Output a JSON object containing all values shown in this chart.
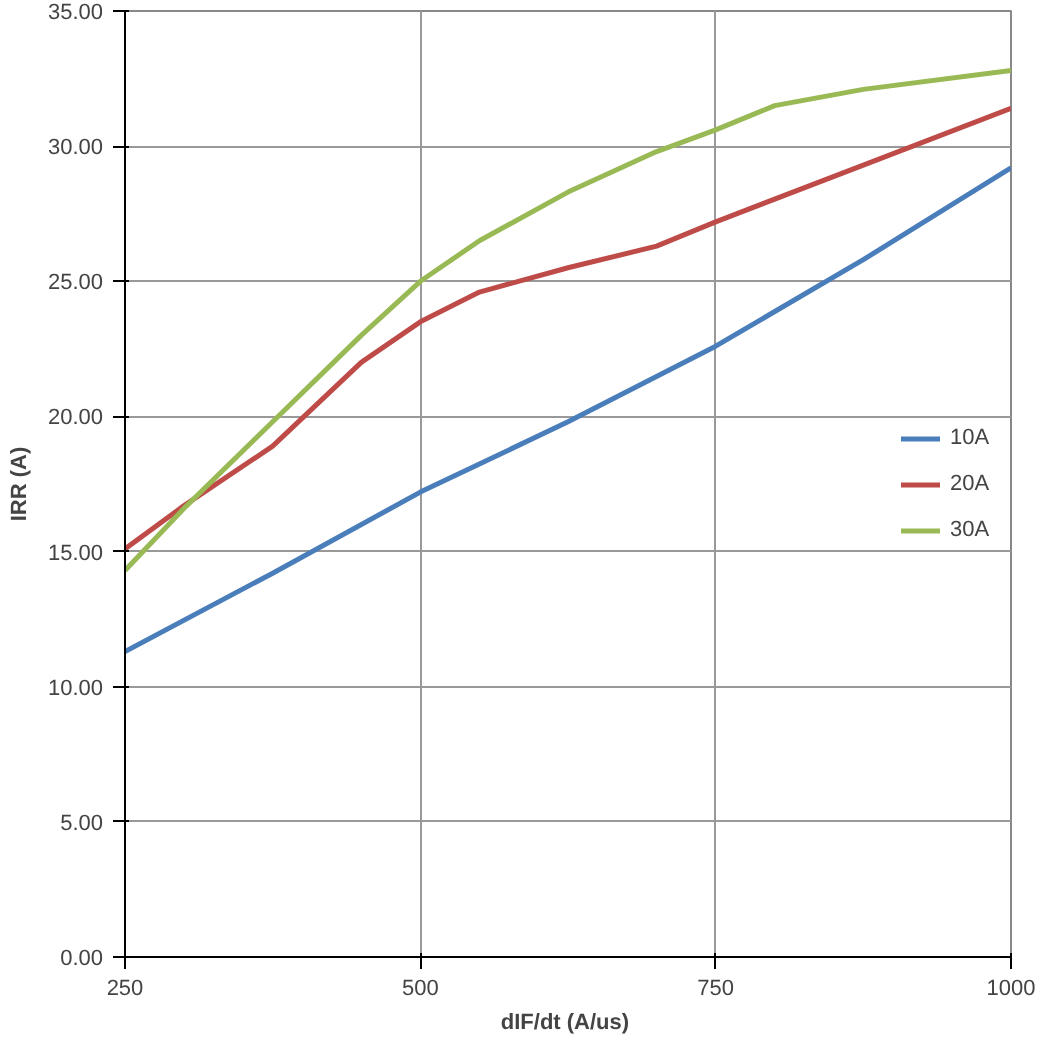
{
  "chart_data": {
    "type": "line",
    "xlabel": "dIF/dt  (A/us)",
    "ylabel": "IRR (A)",
    "xlim": [
      250,
      1000
    ],
    "xticks": [
      250,
      500,
      750,
      1000
    ],
    "ylim": [
      0,
      35
    ],
    "yticks": [
      {
        "value": 0,
        "label": "0.00"
      },
      {
        "value": 5,
        "label": "5.00"
      },
      {
        "value": 10,
        "label": "10.00"
      },
      {
        "value": 15,
        "label": "15.00"
      },
      {
        "value": 20,
        "label": "20.00"
      },
      {
        "value": 25,
        "label": "25.00"
      },
      {
        "value": 30,
        "label": "30.00"
      },
      {
        "value": 35,
        "label": "35.00"
      }
    ],
    "grid": true,
    "legend": "right",
    "marker": "none",
    "line_style": "solid",
    "series": [
      {
        "name": "10A",
        "color": "#4a7ebb",
        "x": [
          250,
          375,
          500,
          625,
          750,
          875,
          1000
        ],
        "values": [
          11.3,
          14.2,
          17.2,
          19.8,
          22.6,
          25.8,
          29.2
        ]
      },
      {
        "name": "20A",
        "color": "#be4b48",
        "x": [
          250,
          300,
          375,
          450,
          500,
          550,
          625,
          700,
          750,
          875,
          1000
        ],
        "values": [
          15.1,
          16.7,
          18.9,
          22.0,
          23.5,
          24.6,
          25.5,
          26.3,
          27.2,
          29.3,
          31.4
        ]
      },
      {
        "name": "30A",
        "color": "#98b954",
        "x": [
          250,
          300,
          375,
          450,
          500,
          550,
          625,
          700,
          750,
          800,
          875,
          1000
        ],
        "values": [
          14.3,
          16.6,
          19.8,
          23.0,
          25.0,
          26.5,
          28.3,
          29.8,
          30.6,
          31.5,
          32.1,
          32.8
        ]
      }
    ]
  }
}
